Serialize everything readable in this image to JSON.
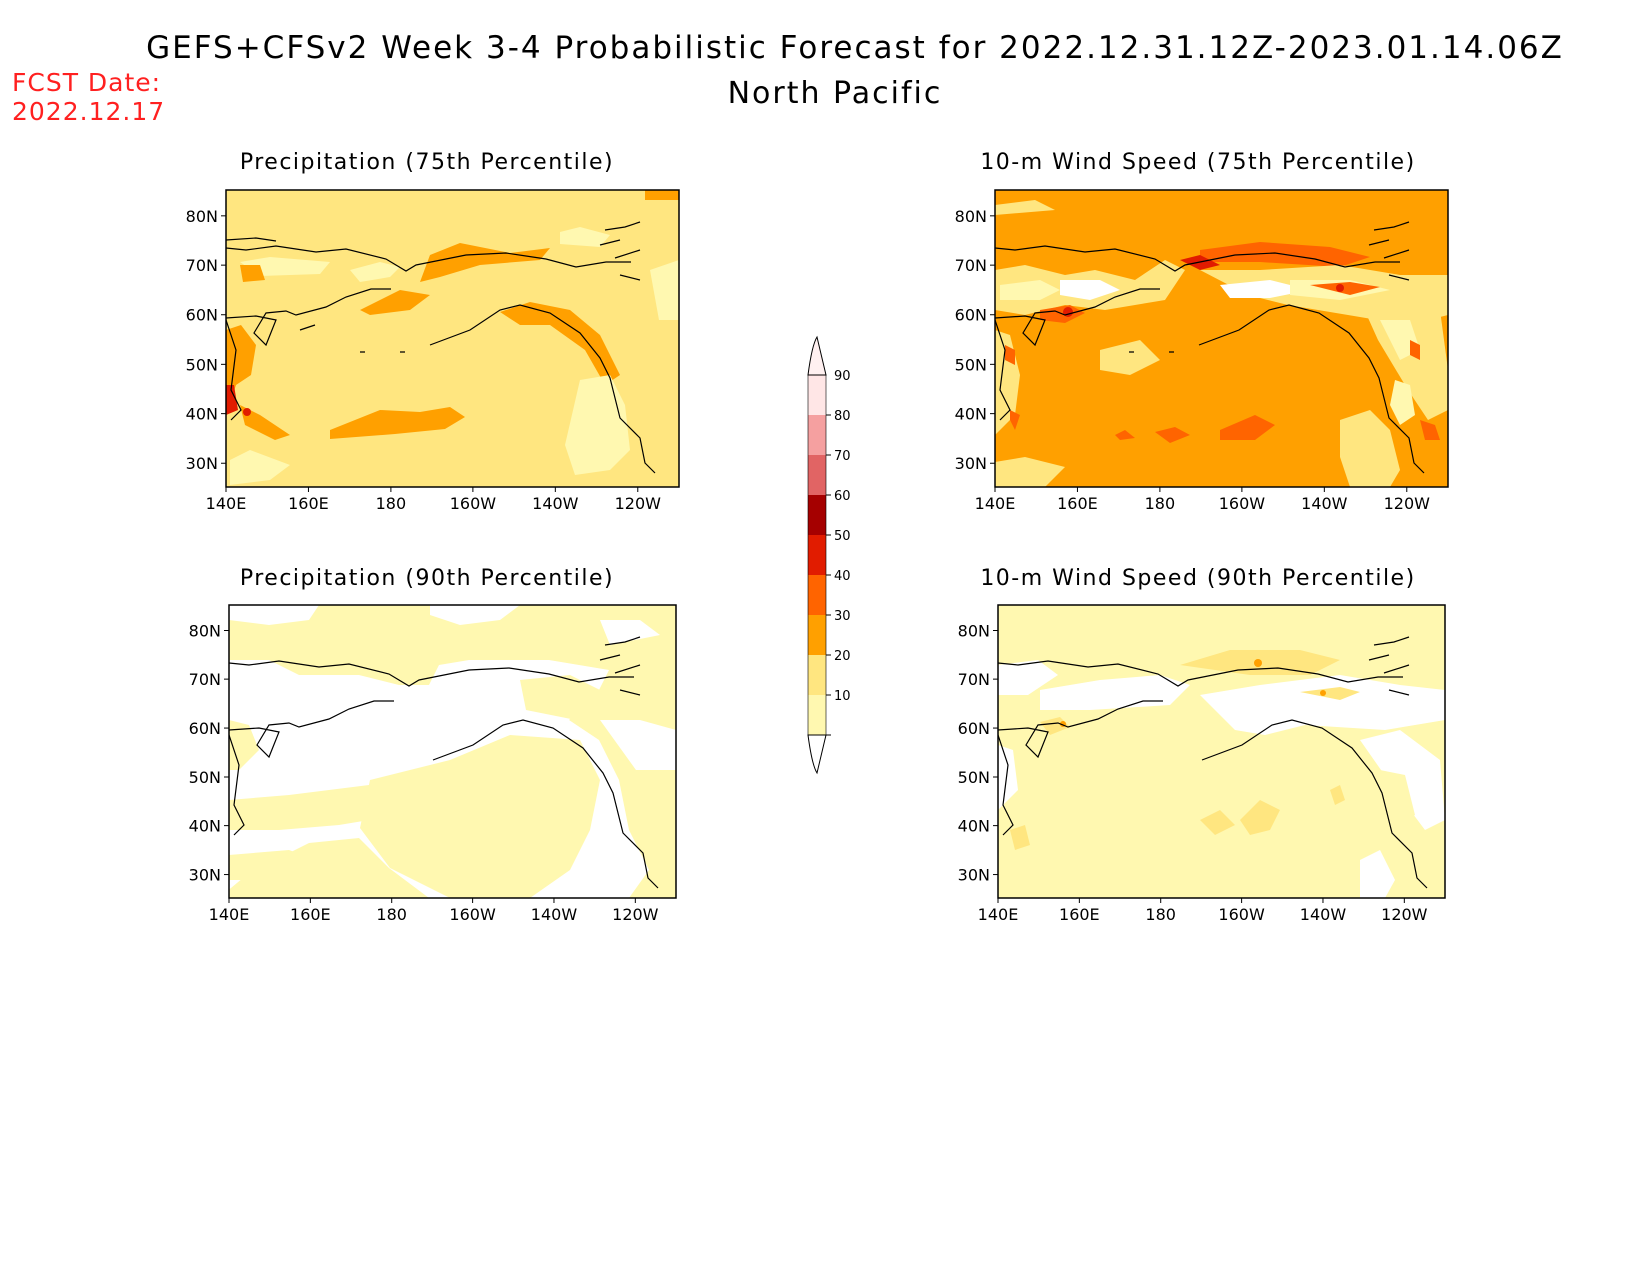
{
  "header": {
    "title": "GEFS+CFSv2 Week 3-4 Probabilistic Forecast for 2022.12.31.12Z-2023.01.14.06Z",
    "region": "North Pacific",
    "fcst_label": "FCST Date:",
    "fcst_date": "2022.12.17"
  },
  "axes": {
    "lat_labels": [
      "80N",
      "70N",
      "60N",
      "50N",
      "40N",
      "30N"
    ],
    "lon_labels": [
      "140E",
      "160E",
      "180",
      "160W",
      "140W",
      "120W"
    ]
  },
  "panels": [
    {
      "id": "precip75",
      "title": "Precipitation (75th Percentile)",
      "base_level": 20
    },
    {
      "id": "wind75",
      "title": "10-m Wind Speed (75th Percentile)",
      "base_level": 30
    },
    {
      "id": "precip90",
      "title": "Precipitation (90th Percentile)",
      "base_level": 10
    },
    {
      "id": "wind90",
      "title": "10-m Wind Speed (90th Percentile)",
      "base_level": 10
    }
  ],
  "colorbar": {
    "labels": [
      "90",
      "80",
      "70",
      "60",
      "50",
      "40",
      "30",
      "20",
      "10"
    ],
    "colors": {
      "10": "#fff8b0",
      "20": "#ffe680",
      "30": "#ffa000",
      "40": "#ff6400",
      "50": "#e11c00",
      "60": "#a50000",
      "70": "#e16464",
      "80": "#f5a0a0",
      "90": "#ffe6e6"
    }
  }
}
